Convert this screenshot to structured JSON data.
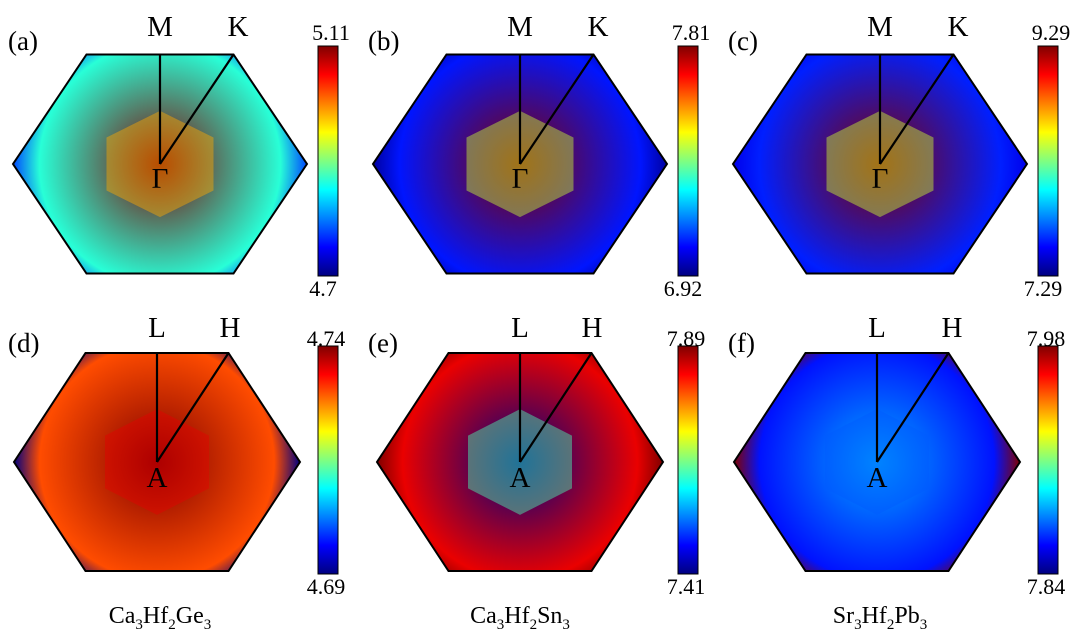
{
  "chart_data": [
    {
      "type": "heatmap",
      "panel_label": "(a)",
      "points": {
        "top_center": "M",
        "top_corner": "K",
        "center": "Γ"
      },
      "colorbar": {
        "max": "5.11",
        "min": "4.7"
      },
      "center_value": 5.11,
      "edge_value": 4.87,
      "corner_value": 4.78,
      "caption": {
        "base1": "Ca",
        "sub1": "3",
        "base2": "Hf",
        "sub2": "2",
        "base3": "Ge",
        "sub3": "3"
      }
    },
    {
      "type": "heatmap",
      "panel_label": "(b)",
      "points": {
        "top_center": "M",
        "top_corner": "K",
        "center": "Γ"
      },
      "colorbar": {
        "max": "7.81",
        "min": "6.92"
      },
      "center_value": 7.81,
      "edge_value": 7.05,
      "corner_value": 6.95,
      "caption": {
        "base1": "Ca",
        "sub1": "3",
        "base2": "Hf",
        "sub2": "2",
        "base3": "Sn",
        "sub3": "3"
      }
    },
    {
      "type": "heatmap",
      "panel_label": "(c)",
      "points": {
        "top_center": "M",
        "top_corner": "K",
        "center": "Γ"
      },
      "colorbar": {
        "max": "9.29",
        "min": "7.29"
      },
      "center_value": 9.29,
      "edge_value": 7.6,
      "corner_value": 7.5,
      "caption": {
        "base1": "Sr",
        "sub1": "3",
        "base2": "Hf",
        "sub2": "2",
        "base3": "Pb",
        "sub3": "3"
      }
    },
    {
      "type": "heatmap",
      "panel_label": "(d)",
      "points": {
        "top_center": "L",
        "top_corner": "H",
        "center": "A"
      },
      "colorbar": {
        "max": "4.74",
        "min": "4.69"
      },
      "center_value": 4.74,
      "edge_value": 4.73,
      "corner_value": 4.69
    },
    {
      "type": "heatmap",
      "panel_label": "(e)",
      "points": {
        "top_center": "L",
        "top_corner": "H",
        "center": "A"
      },
      "colorbar": {
        "max": "7.89",
        "min": "7.41"
      },
      "center_value": 7.41,
      "edge_value": 7.84,
      "corner_value": 7.89
    },
    {
      "type": "heatmap",
      "panel_label": "(f)",
      "points": {
        "top_center": "L",
        "top_corner": "H",
        "center": "A"
      },
      "colorbar": {
        "max": "7.98",
        "min": "7.84"
      },
      "center_value": 7.88,
      "edge_value": 7.86,
      "corner_value": 7.98
    }
  ]
}
